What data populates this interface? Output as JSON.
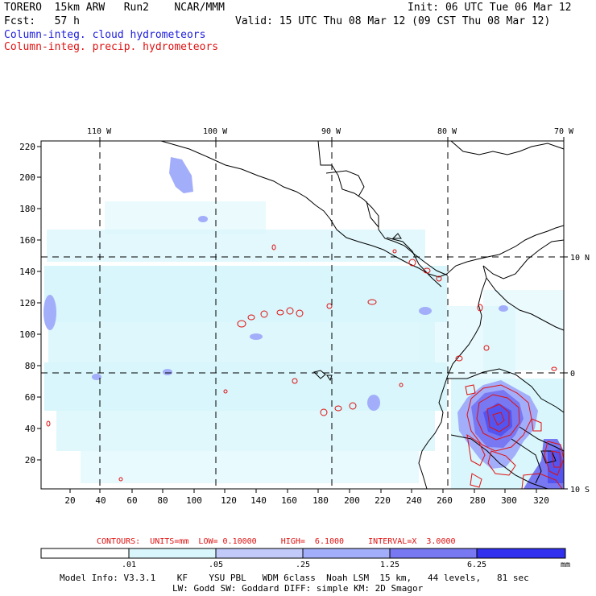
{
  "header": {
    "left_line1": "TORERO  15km ARW   Run2    NCAR/MMM",
    "left_line2": "Fcst:   57 h",
    "init": "Init: 06 UTC Tue 06 Mar 12",
    "valid": "Valid: 15 UTC Thu 08 Mar 12 (09 CST Thu 08 Mar 12)",
    "legend_cloud": "Column-integ. cloud hydrometeors",
    "legend_precip": "Column-integ. precip. hydrometeors"
  },
  "map": {
    "top_lon_labels": [
      "110 W",
      "100 W",
      "90 W",
      "80 W",
      "70 W"
    ],
    "left_y_labels": [
      "220",
      "200",
      "180",
      "160",
      "140",
      "120",
      "100",
      "80",
      "60",
      "40",
      "20"
    ],
    "bottom_x_labels": [
      "20",
      "40",
      "60",
      "80",
      "100",
      "120",
      "140",
      "160",
      "180",
      "200",
      "220",
      "240",
      "260",
      "280",
      "300",
      "320"
    ],
    "right_lat_labels": [
      "10 N",
      "0",
      "10 S"
    ]
  },
  "contours": {
    "text": "CONTOURS:  UNITS=mm  LOW= 0.10000     HIGH=  6.1000     INTERVAL=X  3.0000"
  },
  "colorbar": {
    "labels": [
      ".01",
      ".05",
      ".25",
      "1.25",
      "6.25"
    ],
    "unit": "mm",
    "colors": [
      "#ffffff",
      "#d8f6fb",
      "#c2cafa",
      "#a3aefa",
      "#7878f2",
      "#5454f0",
      "#3030ee"
    ]
  },
  "footer": {
    "line1": "Model Info: V3.3.1    KF    YSU PBL   WDM 6class  Noah LSM  15 km,   44 levels,   81 sec",
    "line2": "LW: Godd SW: Goddard DIFF: simple KM: 2D Smagor"
  }
}
